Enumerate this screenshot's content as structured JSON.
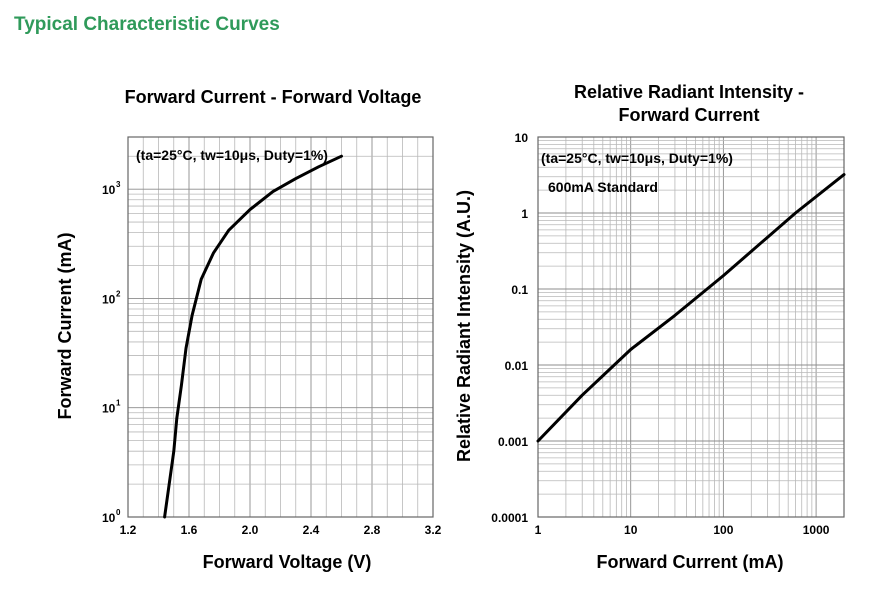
{
  "page": {
    "title": "Typical Characteristic Curves"
  },
  "chart_data": [
    {
      "type": "line",
      "title": "Forward Current - Forward Voltage",
      "xlabel": "Forward Voltage (V)",
      "ylabel": "Forward Current (mA)",
      "xlim": [
        1.2,
        3.2
      ],
      "ylim": [
        1,
        3000
      ],
      "yscale": "log",
      "xticks": [
        {
          "value": 1.2,
          "label": "1.2"
        },
        {
          "value": 1.6,
          "label": "1.6"
        },
        {
          "value": 2.0,
          "label": "2.0"
        },
        {
          "value": 2.4,
          "label": "2.4"
        },
        {
          "value": 2.8,
          "label": "2.8"
        },
        {
          "value": 3.2,
          "label": "3.2"
        }
      ],
      "yticks": [
        {
          "value": 1,
          "base": "10",
          "exp": "0"
        },
        {
          "value": 10,
          "base": "10",
          "exp": "1"
        },
        {
          "value": 100,
          "base": "10",
          "exp": "2"
        },
        {
          "value": 1000,
          "base": "10",
          "exp": "3"
        }
      ],
      "annotation": "(ta=25°C, tw=10μs, Duty=1%)",
      "grid": true,
      "series": [
        {
          "x": [
            1.44,
            1.47,
            1.5,
            1.52,
            1.55,
            1.58,
            1.62,
            1.68,
            1.76,
            1.86,
            2.0,
            2.15,
            2.3,
            2.45,
            2.6
          ],
          "y": [
            1,
            2,
            4,
            8,
            16,
            35,
            70,
            150,
            260,
            420,
            650,
            950,
            1250,
            1600,
            2000
          ]
        }
      ]
    },
    {
      "type": "line",
      "title": "Relative Radiant Intensity - Forward Current",
      "title_lines": [
        "Relative Radiant Intensity -",
        "Forward Current"
      ],
      "xlabel": "Forward Current (mA)",
      "ylabel": "Relative Radiant Intensity (A.U.)",
      "xscale": "log",
      "yscale": "log",
      "xlim": [
        1,
        2000
      ],
      "ylim": [
        0.0001,
        10
      ],
      "xticks": [
        {
          "value": 1,
          "label": "1"
        },
        {
          "value": 10,
          "label": "10"
        },
        {
          "value": 100,
          "label": "100"
        },
        {
          "value": 1000,
          "label": "1000"
        }
      ],
      "yticks": [
        {
          "value": 0.0001,
          "label": "0.0001"
        },
        {
          "value": 0.001,
          "label": "0.001"
        },
        {
          "value": 0.01,
          "label": "0.01"
        },
        {
          "value": 0.1,
          "label": "0.1"
        },
        {
          "value": 1,
          "label": "1"
        },
        {
          "value": 10,
          "label": "10"
        }
      ],
      "annotations": [
        "(ta=25°C, tw=10μs, Duty=1%)",
        "600mA Standard"
      ],
      "grid": true,
      "series": [
        {
          "x": [
            1,
            3,
            10,
            30,
            100,
            300,
            600,
            2000
          ],
          "y": [
            0.001,
            0.004,
            0.016,
            0.045,
            0.15,
            0.48,
            1.0,
            3.2
          ]
        }
      ]
    }
  ]
}
